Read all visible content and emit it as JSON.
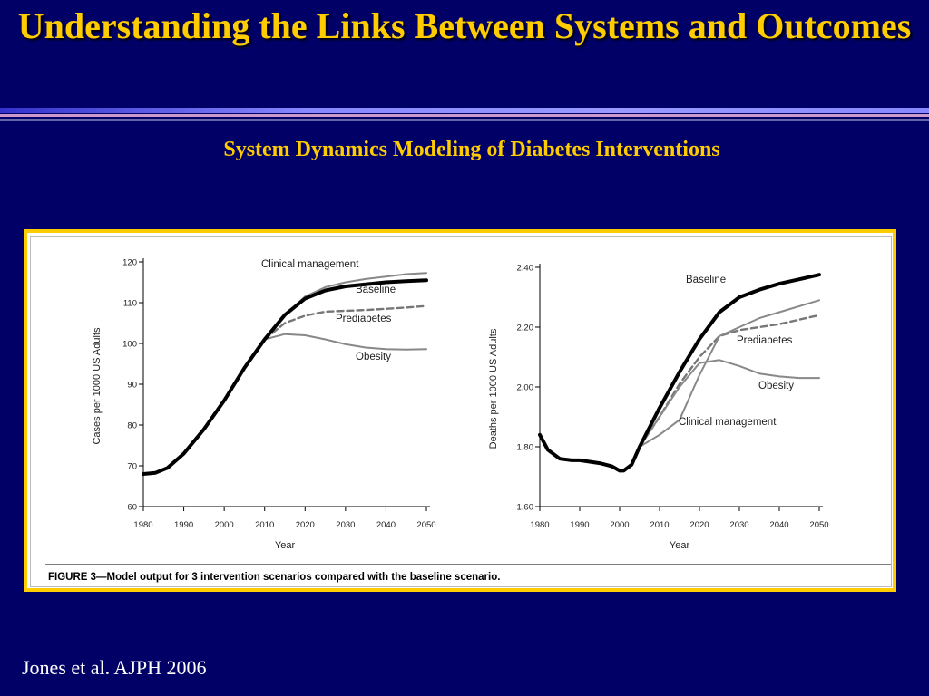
{
  "slide": {
    "title": "Understanding the Links Between Systems and Outcomes",
    "subtitle": "System Dynamics Modeling of Diabetes Interventions",
    "citation": "Jones et al.  AJPH 2006",
    "colors": {
      "background": "#000066",
      "title": "#ffcc00",
      "frame": "#ffcc00"
    }
  },
  "figure": {
    "caption": "FIGURE 3—Model output for 3 intervention scenarios compared with the baseline scenario."
  },
  "chart_data": [
    {
      "type": "line",
      "xlabel": "Year",
      "ylabel": "Cases per 1000 US Adults",
      "xlim": [
        1980,
        2050
      ],
      "ylim": [
        60,
        120
      ],
      "xticks": [
        1980,
        1990,
        2000,
        2010,
        2020,
        2030,
        2040,
        2050
      ],
      "yticks": [
        60,
        70,
        80,
        90,
        100,
        110,
        120
      ],
      "series": [
        {
          "name": "Baseline",
          "style": "thick-black",
          "color": "#000000",
          "x": [
            1980,
            1983,
            1986,
            1990,
            1995,
            2000,
            2005,
            2010,
            2015,
            2020,
            2025,
            2030,
            2035,
            2040,
            2045,
            2050
          ],
          "y": [
            68,
            68.3,
            69.5,
            73,
            79,
            86,
            94,
            101,
            107,
            111,
            113,
            114,
            114.5,
            115,
            115.3,
            115.5
          ]
        },
        {
          "name": "Clinical management",
          "style": "gray",
          "color": "#888888",
          "x": [
            2010,
            2015,
            2020,
            2025,
            2030,
            2035,
            2040,
            2045,
            2050
          ],
          "y": [
            101,
            107,
            111.5,
            113.8,
            115,
            115.8,
            116.4,
            117,
            117.3
          ]
        },
        {
          "name": "Prediabetes",
          "style": "dashed-gray",
          "color": "#777777",
          "x": [
            2010,
            2015,
            2020,
            2025,
            2030,
            2035,
            2040,
            2045,
            2050
          ],
          "y": [
            101,
            105,
            106.8,
            107.8,
            108,
            108.2,
            108.5,
            108.8,
            109.2
          ]
        },
        {
          "name": "Obesity",
          "style": "gray",
          "color": "#888888",
          "x": [
            2010,
            2015,
            2020,
            2025,
            2030,
            2035,
            2040,
            2045,
            2050
          ],
          "y": [
            101,
            102.3,
            102,
            101,
            99.8,
            99,
            98.6,
            98.5,
            98.6
          ]
        }
      ],
      "annotations": [
        "Clinical management",
        "Baseline",
        "Prediabetes",
        "Obesity"
      ]
    },
    {
      "type": "line",
      "xlabel": "Year",
      "ylabel": "Deaths per 1000 US Adults",
      "xlim": [
        1980,
        2050
      ],
      "ylim": [
        1.6,
        2.4
      ],
      "xticks": [
        1980,
        1990,
        2000,
        2010,
        2020,
        2030,
        2040,
        2050
      ],
      "yticks": [
        "1.60",
        "1.80",
        "2.00",
        "2.20",
        "2.40"
      ],
      "yticks_num": [
        1.6,
        1.8,
        2.0,
        2.2,
        2.4
      ],
      "series": [
        {
          "name": "Baseline",
          "style": "thick-black",
          "color": "#000000",
          "x": [
            1980,
            1982,
            1985,
            1988,
            1990,
            1995,
            1998,
            2000,
            2001,
            2003,
            2005,
            2010,
            2015,
            2020,
            2025,
            2030,
            2035,
            2040,
            2045,
            2050
          ],
          "y": [
            1.84,
            1.79,
            1.76,
            1.755,
            1.755,
            1.745,
            1.735,
            1.72,
            1.72,
            1.74,
            1.8,
            1.93,
            2.05,
            2.16,
            2.25,
            2.3,
            2.325,
            2.345,
            2.36,
            2.375
          ]
        },
        {
          "name": "Prediabetes",
          "style": "dashed-gray",
          "color": "#777777",
          "x": [
            2005,
            2010,
            2015,
            2020,
            2025,
            2030,
            2035,
            2040,
            2045,
            2050
          ],
          "y": [
            1.8,
            1.9,
            2.01,
            2.1,
            2.17,
            2.19,
            2.2,
            2.21,
            2.225,
            2.24
          ]
        },
        {
          "name": "Obesity",
          "style": "gray",
          "color": "#888888",
          "x": [
            2005,
            2010,
            2015,
            2020,
            2025,
            2030,
            2035,
            2040,
            2045,
            2050
          ],
          "y": [
            1.8,
            1.9,
            2.0,
            2.08,
            2.09,
            2.07,
            2.045,
            2.035,
            2.03,
            2.03
          ]
        },
        {
          "name": "Clinical management",
          "style": "gray",
          "color": "#888888",
          "x": [
            2005,
            2010,
            2015,
            2020,
            2025,
            2030,
            2035,
            2040,
            2045,
            2050
          ],
          "y": [
            1.8,
            1.84,
            1.89,
            2.04,
            2.17,
            2.2,
            2.23,
            2.25,
            2.27,
            2.29
          ]
        }
      ],
      "annotations": [
        "Baseline",
        "Prediabetes",
        "Obesity",
        "Clinical management"
      ]
    }
  ]
}
